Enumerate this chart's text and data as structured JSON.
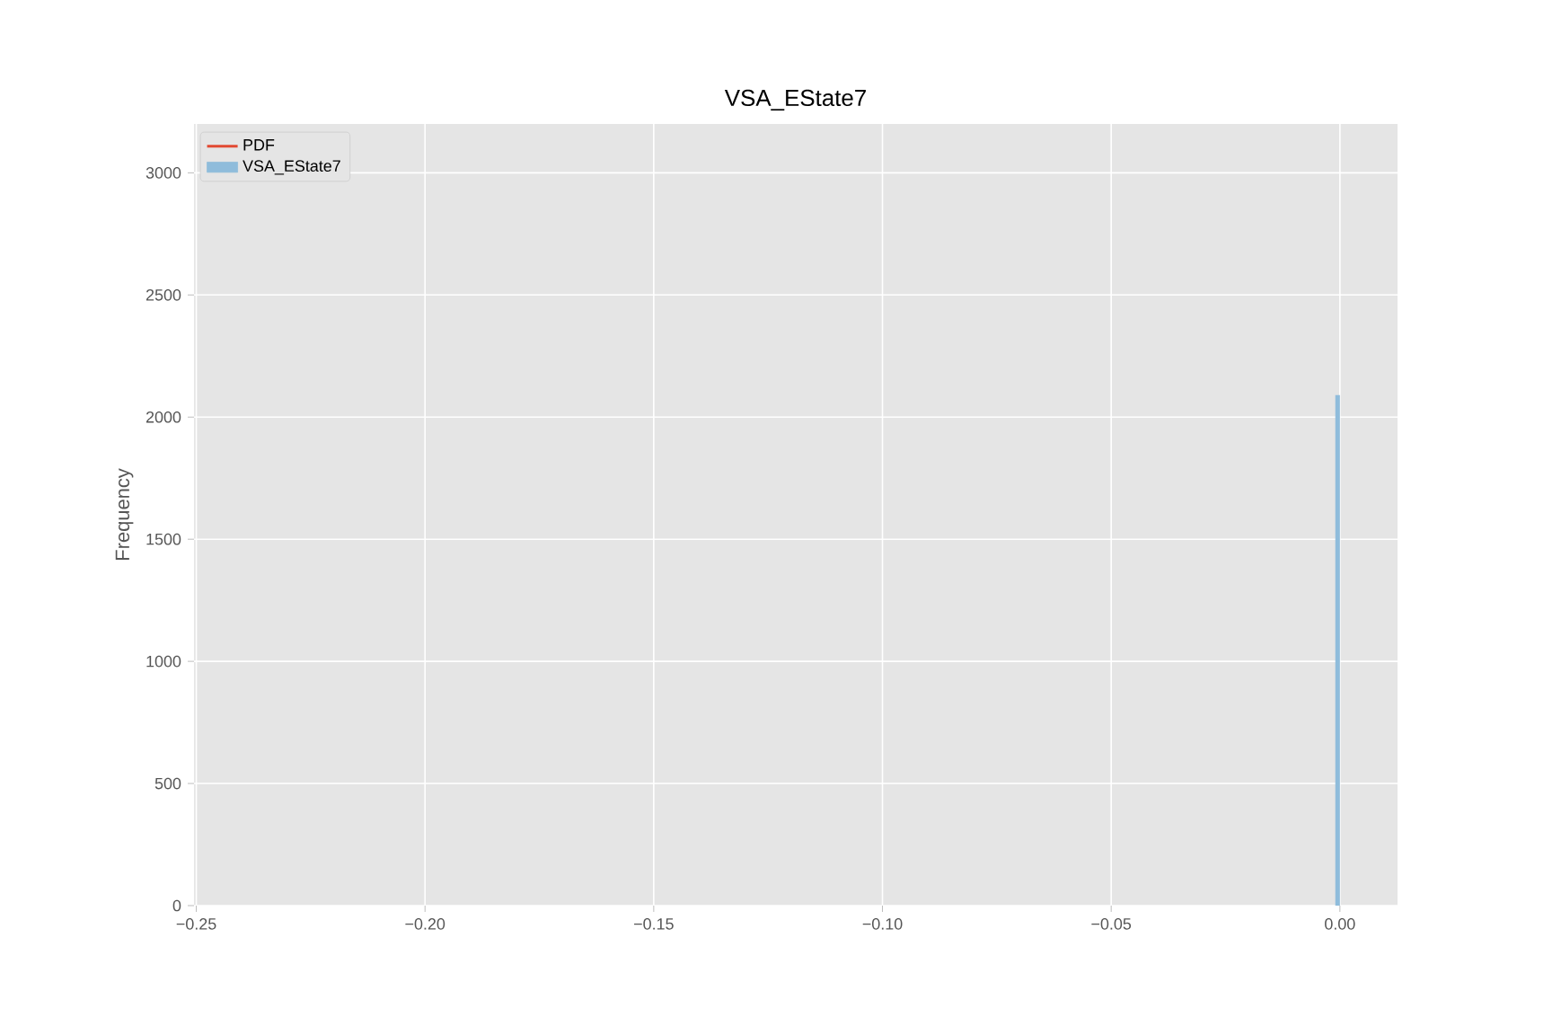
{
  "chart_data": {
    "type": "histogram",
    "title": "VSA_EState7",
    "ylabel": "Frequency",
    "bins": [
      -0.001,
      0.0
    ],
    "series": [
      {
        "name": "PDF",
        "type": "line",
        "color": "#e24a33"
      },
      {
        "name": "VSA_EState7",
        "color": "#8fbcdb",
        "values": [
          2090
        ]
      }
    ],
    "xlim": [
      -0.2505,
      0.0126
    ],
    "ylim": [
      0,
      3200
    ],
    "xticks": [
      {
        "value": -0.25,
        "label": "−0.25"
      },
      {
        "value": -0.2,
        "label": "−0.20"
      },
      {
        "value": -0.15,
        "label": "−0.15"
      },
      {
        "value": -0.1,
        "label": "−0.10"
      },
      {
        "value": -0.05,
        "label": "−0.05"
      },
      {
        "value": 0.0,
        "label": "0.00"
      }
    ],
    "yticks": [
      0,
      500,
      1000,
      1500,
      2000,
      2500,
      3000
    ],
    "grid": true,
    "legend": "top left"
  }
}
